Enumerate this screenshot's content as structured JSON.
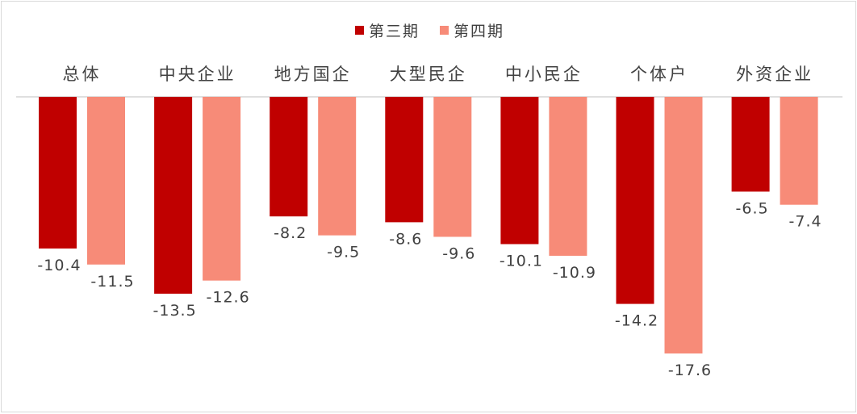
{
  "chart_data": {
    "type": "bar",
    "orientation": "vertical",
    "categories": [
      "总体",
      "中央企业",
      "地方国企",
      "大型民企",
      "中小民企",
      "个体户",
      "外资企业"
    ],
    "series": [
      {
        "name": "第三期",
        "color": "#c00000",
        "values": [
          -10.4,
          -13.5,
          -8.2,
          -8.6,
          -10.1,
          -14.2,
          -6.5
        ]
      },
      {
        "name": "第四期",
        "color": "#f78b78",
        "values": [
          -11.5,
          -12.6,
          -9.5,
          -9.6,
          -10.9,
          -17.6,
          -7.4
        ]
      }
    ],
    "title": "",
    "xlabel": "",
    "ylabel": "",
    "ylim": [
      -17.6,
      0
    ],
    "grid": false,
    "legend": "top-center",
    "data_labels": true,
    "category_labels_position": "top"
  }
}
